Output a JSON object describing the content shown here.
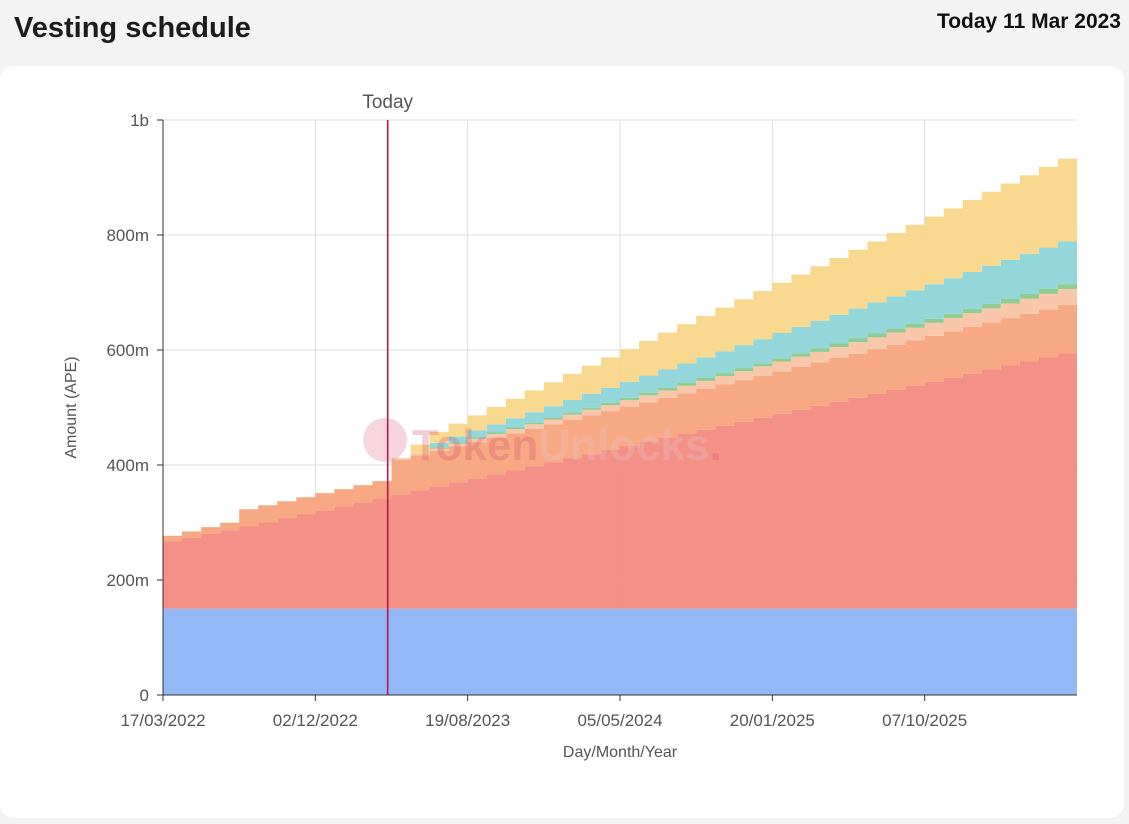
{
  "header": {
    "title": "Vesting schedule",
    "today_label": "Today 11 Mar 2023"
  },
  "watermark": {
    "left": "Token",
    "right": "Unlocks",
    "dot": "."
  },
  "chart_data": {
    "type": "area",
    "stacked": true,
    "stepped": true,
    "xlabel": "Day/Month/Year",
    "ylabel": "Amount (APE)",
    "ylim": [
      0,
      1000000000
    ],
    "y_ticks": [
      {
        "value": 0,
        "label": "0"
      },
      {
        "value": 200000000,
        "label": "200m"
      },
      {
        "value": 400000000,
        "label": "400m"
      },
      {
        "value": 600000000,
        "label": "600m"
      },
      {
        "value": 800000000,
        "label": "800m"
      },
      {
        "value": 1000000000,
        "label": "1b"
      }
    ],
    "x_ticks": [
      "17/03/2022",
      "02/12/2022",
      "19/08/2023",
      "05/05/2024",
      "20/01/2025",
      "07/10/2025"
    ],
    "today_marker": {
      "label": "Today",
      "month_index": 11.8
    },
    "colors": [
      "#8cb4f5",
      "#f28b82",
      "#f5a47c",
      "#f9c4a6",
      "#88c98a",
      "#8dd5d8",
      "#f9d68a"
    ],
    "months": 48,
    "series": [
      {
        "segments": [
          {
            "from": 0,
            "to": 48,
            "start": 150000000,
            "step": 0
          }
        ]
      },
      {
        "segments": [
          {
            "from": 0,
            "to": 4,
            "start": 117000000,
            "step": 6500000
          },
          {
            "from": 4,
            "to": 48,
            "start": 143000000,
            "step": 7000000
          }
        ]
      },
      {
        "segments": [
          {
            "from": 0,
            "to": 4,
            "start": 10000000,
            "step": 1000000
          },
          {
            "from": 4,
            "to": 12,
            "start": 30000000,
            "step": 0
          },
          {
            "from": 12,
            "to": 48,
            "start": 60000000,
            "step": 0.7
          }
        ]
      },
      {
        "segments": [
          {
            "from": 12,
            "to": 48,
            "start": 3000000,
            "step": 700000
          }
        ]
      },
      {
        "segments": [
          {
            "from": 14,
            "to": 48,
            "start": 2000000,
            "step": 200000
          }
        ]
      },
      {
        "segments": [
          {
            "from": 14,
            "to": 48,
            "start": 8000000,
            "step": 2000000
          }
        ]
      },
      {
        "segments": [
          {
            "from": 13,
            "to": 48,
            "start": 15000000,
            "step": 3800000
          }
        ]
      }
    ]
  }
}
